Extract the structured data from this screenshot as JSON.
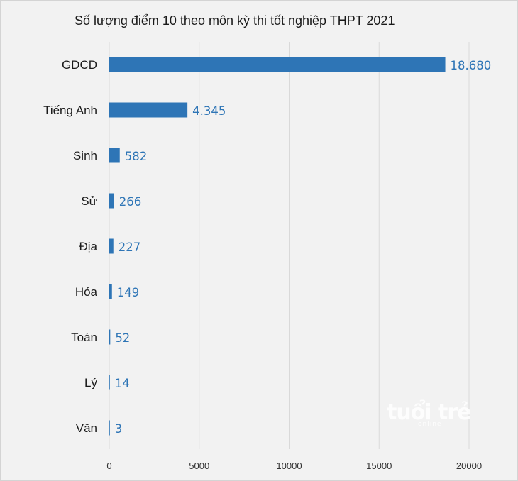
{
  "chart_data": {
    "type": "bar",
    "orientation": "horizontal",
    "title": "Số lượng điểm 10 theo môn kỳ thi tốt nghiệp THPT 2021",
    "categories": [
      "GDCD",
      "Tiếng Anh",
      "Sinh",
      "Sử",
      "Địa",
      "Hóa",
      "Toán",
      "Lý",
      "Văn"
    ],
    "values": [
      18680,
      4345,
      582,
      266,
      227,
      149,
      52,
      14,
      3
    ],
    "value_labels": [
      "18.680",
      "4.345",
      "582",
      "266",
      "227",
      "149",
      "52",
      "14",
      "3"
    ],
    "xlim": [
      0,
      20000
    ],
    "x_ticks": [
      0,
      5000,
      10000,
      15000,
      20000
    ],
    "x_tick_labels": [
      "0",
      "5000",
      "10000",
      "15000",
      "20000"
    ],
    "grid": "vertical",
    "legend": "none",
    "bar_color": "#2e75b6",
    "label_color": "#2e75b6"
  },
  "watermark": {
    "logo": "tuổi trẻ",
    "sub": "online"
  }
}
